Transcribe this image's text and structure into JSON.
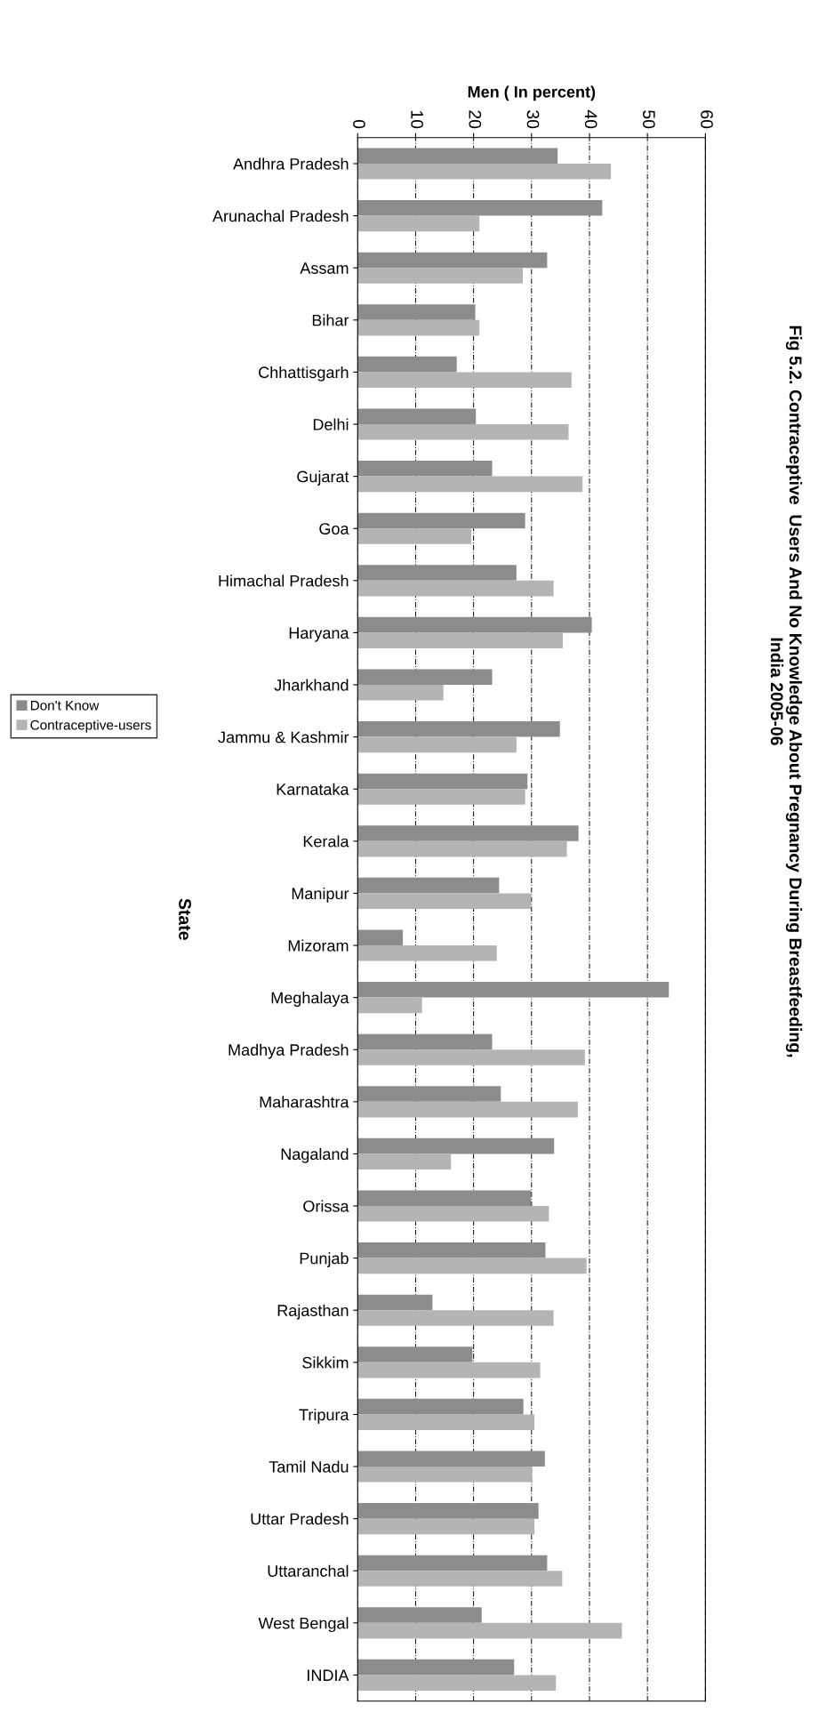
{
  "chart_data": {
    "type": "bar",
    "orientation": "horizontal",
    "title": "Fig 5.2. Contraceptive  Users And No Knowledge About Pregnancy During Breastfeeding,\nIndia 2005-06",
    "xlabel": "Men ( In percent)",
    "ylabel": "State",
    "categories": [
      "Andhra Pradesh",
      "Arunachal Pradesh",
      "Assam",
      "Bihar",
      "Chhattisgarh",
      "Delhi",
      "Gujarat",
      "Goa",
      "Himachal Pradesh",
      "Haryana",
      "Jharkhand",
      "Jammu & Kashmir",
      "Karnataka",
      "Kerala",
      "Manipur",
      "Mizoram",
      "Meghalaya",
      "Madhya Pradesh",
      "Maharashtra",
      "Nagaland",
      "Orissa",
      "Punjab",
      "Rajasthan",
      "Sikkim",
      "Tripura",
      "Tamil Nadu",
      "Uttar Pradesh",
      "Uttaranchal",
      "West Bengal",
      "INDIA"
    ],
    "series": [
      {
        "name": "Don't Know",
        "color": "#8c8c8c",
        "values": [
          34.5,
          42.2,
          32.7,
          20.3,
          17.1,
          20.4,
          23.2,
          28.9,
          27.4,
          40.4,
          23.2,
          34.9,
          29.3,
          38.1,
          24.4,
          7.8,
          53.7,
          23.2,
          24.7,
          33.9,
          29.9,
          32.4,
          12.9,
          19.8,
          28.6,
          32.3,
          31.2,
          32.7,
          21.4,
          27.0
        ]
      },
      {
        "name": "Contraceptive-users",
        "color": "#b4b4b4",
        "values": [
          43.7,
          21.0,
          28.5,
          21.0,
          36.9,
          36.4,
          38.8,
          19.6,
          33.8,
          35.4,
          14.8,
          27.4,
          28.9,
          36.1,
          29.9,
          24.0,
          11.1,
          39.2,
          38.0,
          16.1,
          33.0,
          39.5,
          33.8,
          31.5,
          30.5,
          30.1,
          30.5,
          35.3,
          45.6,
          34.2
        ]
      }
    ],
    "xlim": [
      0,
      60
    ],
    "xticks": [
      0,
      10,
      20,
      30,
      40,
      50,
      60
    ],
    "grid": "x",
    "legend": "left"
  }
}
